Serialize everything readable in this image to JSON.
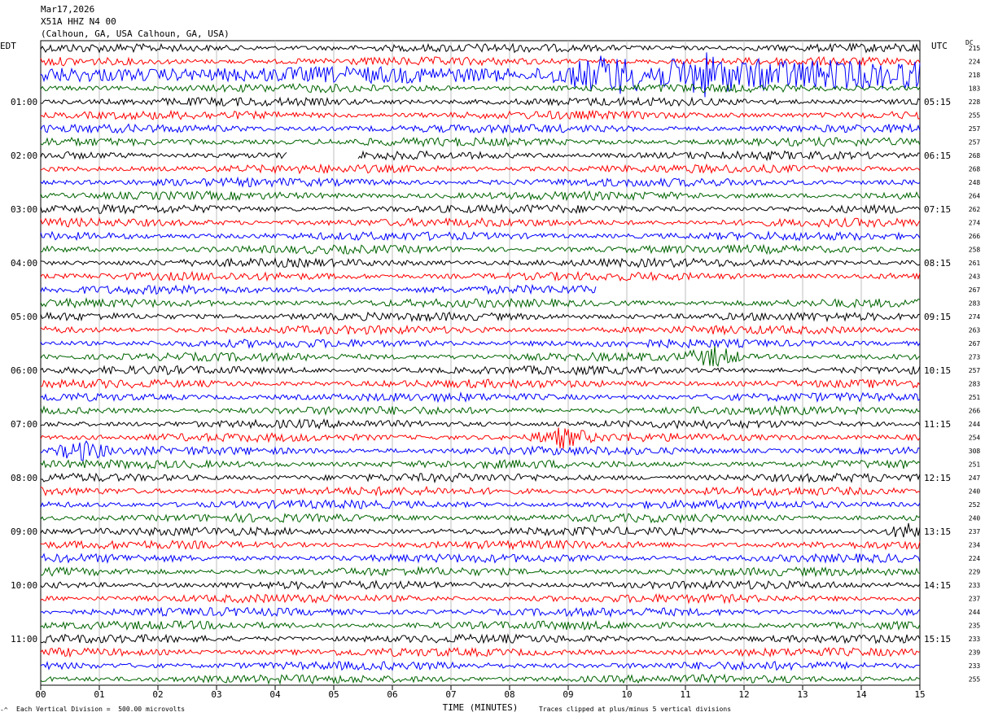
{
  "header": {
    "date": "Mar17,2026",
    "station": "X51A HHZ N4 00",
    "location": "(Calhoun, GA, USA Calhoun, GA, USA)"
  },
  "left_zone": "EDT",
  "right_zone": "UTC",
  "dc_label": "DC",
  "footer": {
    "scale_note": "Each Vertical Division =  500.00 microvolts",
    "clip_note": "Traces clipped at plus/minus 5 vertical divisions",
    "corner_mark": "-^"
  },
  "colors": {
    "trace_cycle": [
      "#000000",
      "#ff0000",
      "#0000ff",
      "#006400"
    ],
    "grid": "#bfbfbf"
  },
  "chart_data": {
    "type": "line",
    "title": "",
    "xlabel": "TIME (MINUTES)",
    "xlim": [
      0,
      15
    ],
    "x_tick_labels": [
      "00",
      "01",
      "02",
      "03",
      "04",
      "05",
      "06",
      "07",
      "08",
      "09",
      "10",
      "11",
      "12",
      "13",
      "14",
      "15"
    ],
    "left_hour_labels": [
      "01:00",
      "02:00",
      "03:00",
      "04:00",
      "05:00",
      "06:00",
      "07:00",
      "08:00",
      "09:00",
      "10:00",
      "11:00"
    ],
    "right_hour_labels": [
      "05:15",
      "06:15",
      "07:15",
      "08:15",
      "09:15",
      "10:15",
      "11:15",
      "12:15",
      "13:15",
      "14:15",
      "15:15"
    ],
    "dc_offsets": [
      215,
      224,
      218,
      183,
      228,
      255,
      257,
      257,
      268,
      268,
      248,
      264,
      262,
      274,
      266,
      258,
      261,
      243,
      267,
      283,
      274,
      263,
      267,
      273,
      257,
      283,
      251,
      266,
      244,
      254,
      308,
      251,
      247,
      240,
      252,
      240,
      237,
      234,
      224,
      229,
      233,
      237,
      244,
      235,
      233,
      239,
      233,
      255
    ],
    "gaps": [
      {
        "trace": 8,
        "from_min": 4.2,
        "to_min": 5.4
      },
      {
        "trace": 18,
        "from_min": 9.5,
        "to_min": 15.0
      }
    ],
    "events": [
      {
        "trace": 2,
        "minute": 9.7,
        "note": "clipped high-amplitude signal"
      },
      {
        "trace": 2,
        "minute": 11.3,
        "note": "clipped high-amplitude signal"
      },
      {
        "trace": 23,
        "minute": 11.5
      },
      {
        "trace": 29,
        "minute": 8.9
      },
      {
        "trace": 30,
        "minute": 0.7
      },
      {
        "trace": 36,
        "minute": 15.0
      }
    ]
  }
}
